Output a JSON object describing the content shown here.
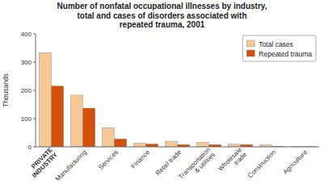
{
  "chart_data": {
    "type": "bar",
    "title": "Number of nonfatal occupational illnesses by industry,\ntotal and cases of disorders associated with\nrepeated trauma, 2001",
    "categories": [
      "PRIVATE\nINDUSTRY",
      "Manufacturing",
      "Services",
      "Finance",
      "Retail trade",
      "Transportation\n& utilities",
      "Wholesale\ntrade",
      "Construction",
      "Agriculture"
    ],
    "series": [
      {
        "name": "Total cases",
        "color": "#F5C896",
        "values": [
          333,
          183,
          68,
          13,
          20,
          16,
          10,
          7,
          2
        ]
      },
      {
        "name": "Repeated trauma",
        "color": "#D2500A",
        "values": [
          215,
          137,
          28,
          10,
          8,
          8,
          8,
          2,
          1
        ]
      }
    ],
    "ylabel": "Thousands",
    "ylim": [
      0,
      400
    ],
    "yticks": [
      0,
      100,
      200,
      300,
      400
    ],
    "grid": false,
    "legend": "upper right"
  }
}
